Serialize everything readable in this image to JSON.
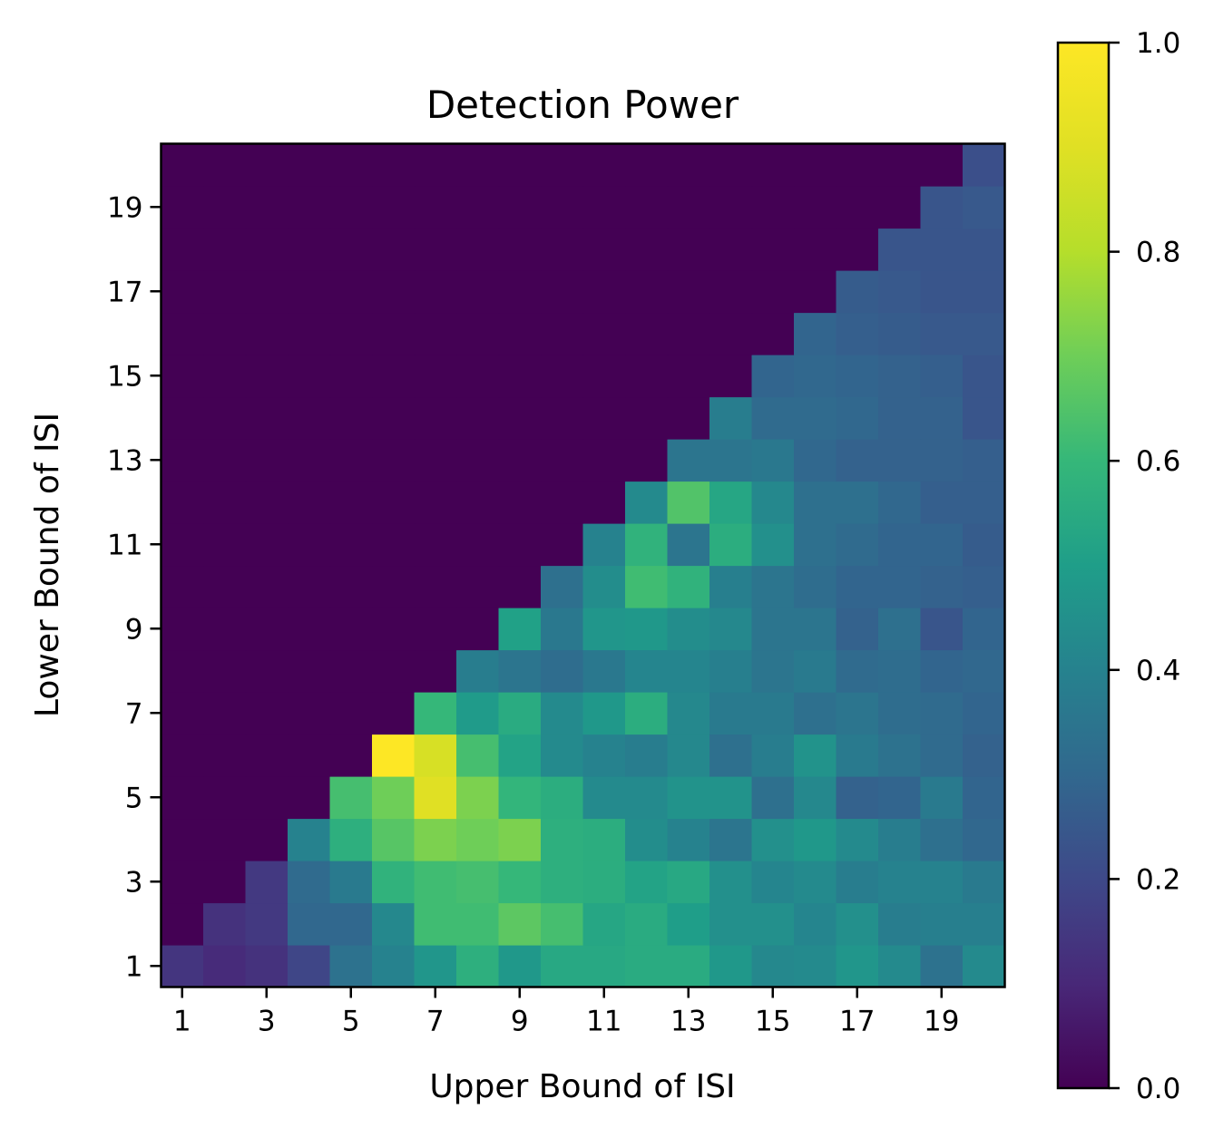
{
  "chart_data": {
    "type": "heatmap",
    "title": "Detection Power",
    "xlabel": "Upper Bound of ISI",
    "ylabel": "Lower Bound of ISI",
    "x_ticks": [
      1,
      3,
      5,
      7,
      9,
      11,
      13,
      15,
      17,
      19
    ],
    "y_ticks": [
      1,
      3,
      5,
      7,
      9,
      11,
      13,
      15,
      17,
      19
    ],
    "x_range": [
      1,
      20
    ],
    "y_range": [
      1,
      20
    ],
    "colormap": "viridis",
    "colorbar": {
      "min": 0.0,
      "max": 1.0,
      "ticks": [
        "0.0",
        "0.2",
        "0.4",
        "0.6",
        "0.8",
        "1.0"
      ]
    },
    "rows_note": "values[i] = Lower Bound of ISI i+1; entry j = Upper Bound of ISI j+1",
    "values": [
      [
        0.14,
        0.11,
        0.13,
        0.19,
        0.34,
        0.4,
        0.47,
        0.57,
        0.48,
        0.54,
        0.54,
        0.55,
        0.55,
        0.48,
        0.42,
        0.43,
        0.47,
        0.43,
        0.34,
        0.43
      ],
      [
        0.0,
        0.13,
        0.15,
        0.3,
        0.3,
        0.42,
        0.62,
        0.62,
        0.67,
        0.63,
        0.53,
        0.55,
        0.5,
        0.45,
        0.45,
        0.41,
        0.45,
        0.38,
        0.39,
        0.39
      ],
      [
        0.0,
        0.0,
        0.15,
        0.31,
        0.37,
        0.58,
        0.62,
        0.63,
        0.6,
        0.57,
        0.56,
        0.52,
        0.54,
        0.45,
        0.41,
        0.43,
        0.38,
        0.4,
        0.4,
        0.37
      ],
      [
        0.0,
        0.0,
        0.0,
        0.4,
        0.57,
        0.66,
        0.72,
        0.7,
        0.72,
        0.57,
        0.56,
        0.44,
        0.4,
        0.35,
        0.45,
        0.48,
        0.43,
        0.38,
        0.33,
        0.3
      ],
      [
        0.0,
        0.0,
        0.0,
        0.0,
        0.63,
        0.7,
        0.9,
        0.72,
        0.59,
        0.56,
        0.43,
        0.43,
        0.46,
        0.46,
        0.33,
        0.42,
        0.28,
        0.29,
        0.37,
        0.29
      ],
      [
        0.0,
        0.0,
        0.0,
        0.0,
        0.0,
        1.0,
        0.88,
        0.63,
        0.52,
        0.43,
        0.4,
        0.38,
        0.42,
        0.33,
        0.38,
        0.46,
        0.37,
        0.34,
        0.31,
        0.28
      ],
      [
        0.0,
        0.0,
        0.0,
        0.0,
        0.0,
        0.0,
        0.6,
        0.49,
        0.55,
        0.43,
        0.48,
        0.56,
        0.42,
        0.37,
        0.37,
        0.33,
        0.35,
        0.32,
        0.31,
        0.29
      ],
      [
        0.0,
        0.0,
        0.0,
        0.0,
        0.0,
        0.0,
        0.0,
        0.38,
        0.35,
        0.32,
        0.36,
        0.41,
        0.41,
        0.39,
        0.35,
        0.37,
        0.31,
        0.32,
        0.29,
        0.3
      ],
      [
        0.0,
        0.0,
        0.0,
        0.0,
        0.0,
        0.0,
        0.0,
        0.0,
        0.51,
        0.36,
        0.47,
        0.48,
        0.44,
        0.42,
        0.35,
        0.35,
        0.28,
        0.33,
        0.24,
        0.29
      ],
      [
        0.0,
        0.0,
        0.0,
        0.0,
        0.0,
        0.0,
        0.0,
        0.0,
        0.0,
        0.33,
        0.44,
        0.62,
        0.58,
        0.39,
        0.35,
        0.32,
        0.29,
        0.29,
        0.28,
        0.27
      ],
      [
        0.0,
        0.0,
        0.0,
        0.0,
        0.0,
        0.0,
        0.0,
        0.0,
        0.0,
        0.0,
        0.4,
        0.58,
        0.35,
        0.56,
        0.45,
        0.33,
        0.31,
        0.29,
        0.29,
        0.26
      ],
      [
        0.0,
        0.0,
        0.0,
        0.0,
        0.0,
        0.0,
        0.0,
        0.0,
        0.0,
        0.0,
        0.0,
        0.43,
        0.65,
        0.53,
        0.42,
        0.33,
        0.33,
        0.3,
        0.27,
        0.27
      ],
      [
        0.0,
        0.0,
        0.0,
        0.0,
        0.0,
        0.0,
        0.0,
        0.0,
        0.0,
        0.0,
        0.0,
        0.0,
        0.35,
        0.35,
        0.36,
        0.3,
        0.28,
        0.28,
        0.28,
        0.27
      ],
      [
        0.0,
        0.0,
        0.0,
        0.0,
        0.0,
        0.0,
        0.0,
        0.0,
        0.0,
        0.0,
        0.0,
        0.0,
        0.0,
        0.38,
        0.31,
        0.31,
        0.3,
        0.28,
        0.28,
        0.24
      ],
      [
        0.0,
        0.0,
        0.0,
        0.0,
        0.0,
        0.0,
        0.0,
        0.0,
        0.0,
        0.0,
        0.0,
        0.0,
        0.0,
        0.0,
        0.29,
        0.3,
        0.29,
        0.28,
        0.27,
        0.24
      ],
      [
        0.0,
        0.0,
        0.0,
        0.0,
        0.0,
        0.0,
        0.0,
        0.0,
        0.0,
        0.0,
        0.0,
        0.0,
        0.0,
        0.0,
        0.0,
        0.29,
        0.27,
        0.26,
        0.25,
        0.25
      ],
      [
        0.0,
        0.0,
        0.0,
        0.0,
        0.0,
        0.0,
        0.0,
        0.0,
        0.0,
        0.0,
        0.0,
        0.0,
        0.0,
        0.0,
        0.0,
        0.0,
        0.26,
        0.25,
        0.24,
        0.24
      ],
      [
        0.0,
        0.0,
        0.0,
        0.0,
        0.0,
        0.0,
        0.0,
        0.0,
        0.0,
        0.0,
        0.0,
        0.0,
        0.0,
        0.0,
        0.0,
        0.0,
        0.0,
        0.24,
        0.24,
        0.24
      ],
      [
        0.0,
        0.0,
        0.0,
        0.0,
        0.0,
        0.0,
        0.0,
        0.0,
        0.0,
        0.0,
        0.0,
        0.0,
        0.0,
        0.0,
        0.0,
        0.0,
        0.0,
        0.0,
        0.24,
        0.25
      ],
      [
        0.0,
        0.0,
        0.0,
        0.0,
        0.0,
        0.0,
        0.0,
        0.0,
        0.0,
        0.0,
        0.0,
        0.0,
        0.0,
        0.0,
        0.0,
        0.0,
        0.0,
        0.0,
        0.0,
        0.22
      ]
    ]
  }
}
